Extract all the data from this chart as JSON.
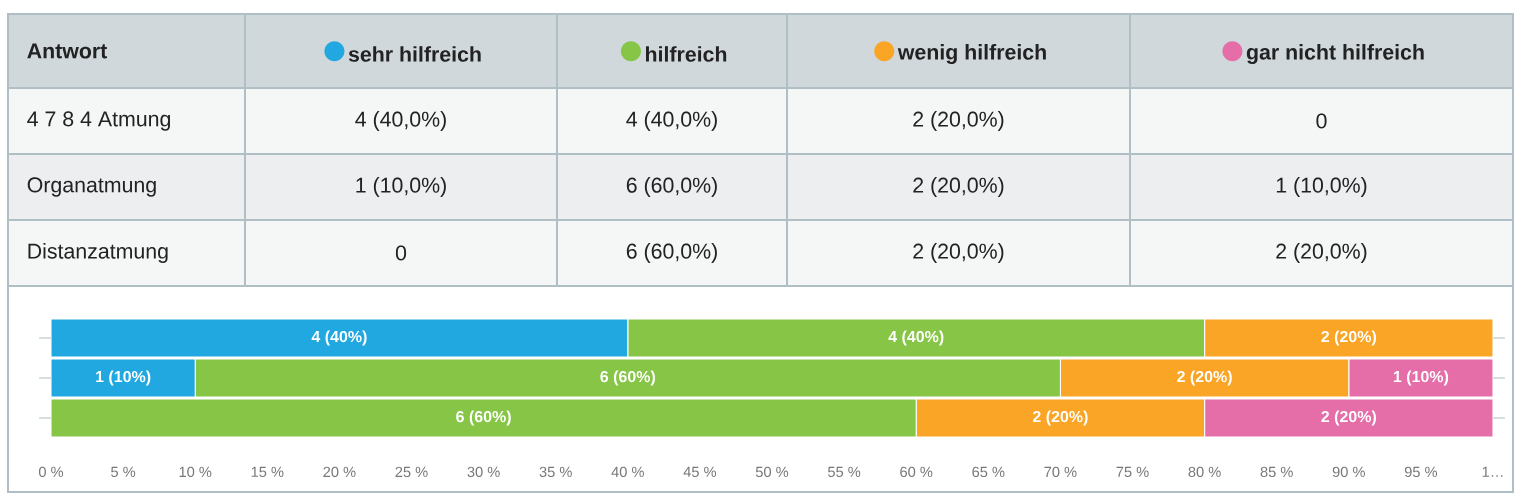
{
  "chart_data": {
    "type": "bar",
    "orientation": "horizontal",
    "stacked": true,
    "legend": "top",
    "legend_title": "Antwort",
    "tick_labels": "x",
    "categories": [
      null,
      null,
      null
    ],
    "series": [
      {
        "name": "sehr hilfreich",
        "color": "#22a8e0",
        "values": [
          40,
          10,
          0
        ],
        "value_labels": [
          "4 (40%)",
          "1 (10%)",
          null
        ]
      },
      {
        "name": "hilfreich",
        "color": "#86c546",
        "values": [
          40,
          60,
          60
        ],
        "value_labels": [
          "4 (40%)",
          "6 (60%)",
          "6 (60%)"
        ]
      },
      {
        "name": "wenig hilfreich",
        "color": "#faa526",
        "values": [
          20,
          20,
          20
        ],
        "value_labels": [
          "2 (20%)",
          "2 (20%)",
          "2 (20%)"
        ]
      },
      {
        "name": "gar nicht hilfreich",
        "color": "#e56ea9",
        "values": [
          0,
          10,
          20
        ],
        "value_labels": [
          null,
          "1 (10%)",
          "2 (20%)"
        ]
      }
    ],
    "annotations": [
      "4 7 8 4 Atmung",
      "4 (40,0%)",
      "4 (40,0%)",
      "2 (20,0%)",
      "0",
      "Organatmung",
      "1 (10,0%)",
      "6 (60,0%)",
      "2 (20,0%)",
      "1 (10,0%)",
      "Distanzatmung",
      "0",
      "6 (60,0%)",
      "2 (20,0%)",
      "2 (20,0%)"
    ],
    "xlim": [
      0,
      100
    ],
    "xticks": [
      {
        "value": 0,
        "label": "0 %"
      },
      {
        "value": 5,
        "label": "5 %"
      },
      {
        "value": 10,
        "label": "10 %"
      },
      {
        "value": 15,
        "label": "15 %"
      },
      {
        "value": 20,
        "label": "20 %"
      },
      {
        "value": 25,
        "label": "25 %"
      },
      {
        "value": 30,
        "label": "30 %"
      },
      {
        "value": 35,
        "label": "35 %"
      },
      {
        "value": 40,
        "label": "40 %"
      },
      {
        "value": 45,
        "label": "45 %"
      },
      {
        "value": 50,
        "label": "50 %"
      },
      {
        "value": 55,
        "label": "55 %"
      },
      {
        "value": 60,
        "label": "60 %"
      },
      {
        "value": 65,
        "label": "65 %"
      },
      {
        "value": 70,
        "label": "70 %"
      },
      {
        "value": 75,
        "label": "75 %"
      },
      {
        "value": 80,
        "label": "80 %"
      },
      {
        "value": 85,
        "label": "85 %"
      },
      {
        "value": 90,
        "label": "90 %"
      },
      {
        "value": 95,
        "label": "95 %"
      },
      {
        "value": 100,
        "label": "1…"
      }
    ]
  }
}
